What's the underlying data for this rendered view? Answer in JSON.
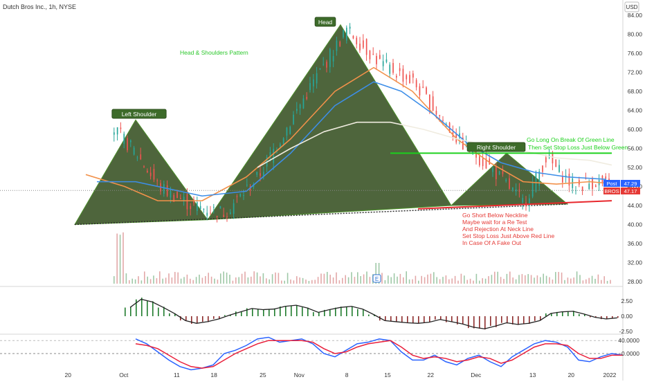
{
  "header": {
    "symbol_line": "Dutch Bros Inc., 1h, NYSE",
    "currency": "USD"
  },
  "chart_data": [
    {
      "type": "candlestick",
      "title": "Dutch Bros Inc., 1h, NYSE",
      "ylim": [
        28,
        86
      ],
      "y_ticks": [
        84.0,
        80.0,
        76.0,
        72.0,
        68.0,
        64.0,
        60.0,
        56.0,
        52.0,
        48.0,
        44.0,
        40.0,
        36.0,
        32.0,
        28.0
      ],
      "x_labels": [
        "20",
        "Oct",
        "11",
        "18",
        "25",
        "Nov",
        "8",
        "15",
        "22",
        "Dec",
        "13",
        "20",
        "2022"
      ],
      "price_path": {
        "t": [
          0,
          4,
          8,
          12,
          16,
          22,
          28,
          34,
          38,
          44,
          50,
          56,
          62,
          66,
          70,
          76,
          82,
          86,
          91,
          95,
          100
        ],
        "close": [
          42,
          54,
          60,
          55,
          48,
          44,
          42.5,
          50,
          58,
          70,
          81,
          74,
          70,
          64,
          58,
          52,
          44.5,
          54,
          48,
          49,
          47.2
        ]
      },
      "moving_averages": [
        {
          "color": "#f2914a",
          "t": [
            3,
            10,
            16,
            24,
            32,
            40,
            48,
            55,
            62,
            70,
            76,
            82,
            88,
            94,
            99
          ],
          "y": [
            50.5,
            48,
            45,
            45,
            50,
            58,
            68,
            73,
            68,
            58,
            53,
            49,
            48.5,
            49,
            48.5
          ]
        },
        {
          "color": "#3d8ee8",
          "t": [
            5,
            12,
            18,
            24,
            32,
            40,
            48,
            55,
            60,
            66,
            72,
            78,
            84,
            90,
            97
          ],
          "y": [
            49,
            49,
            47.5,
            46,
            47,
            55,
            65,
            70,
            68,
            63,
            57,
            53,
            51,
            50,
            49.5
          ]
        },
        {
          "color": "#f0ece0",
          "t": [
            34,
            40,
            46,
            52,
            58,
            64,
            70,
            76,
            82,
            88,
            94,
            98
          ],
          "y": [
            52,
            56,
            59.5,
            61.5,
            61.5,
            60,
            58,
            56.5,
            55.5,
            54,
            53.5,
            52.5
          ]
        }
      ],
      "patterns": [
        {
          "name": "Left Shoulder",
          "polygon": [
            [
              1,
              40
            ],
            [
              12,
              62
            ],
            [
              25,
              41
            ]
          ]
        },
        {
          "name": "Head",
          "polygon": [
            [
              25,
              41
            ],
            [
              49,
              82
            ],
            [
              69,
              44
            ]
          ]
        },
        {
          "name": "Right Shoulder",
          "polygon": [
            [
              69,
              44
            ],
            [
              79,
              55
            ],
            [
              90,
              44.3
            ]
          ]
        }
      ],
      "neckline": {
        "color": "#2f2f2f",
        "dash": true,
        "points": [
          [
            1,
            40
          ],
          [
            90,
            44.3
          ]
        ]
      },
      "red_line": {
        "color": "#e8272c",
        "points": [
          [
            63,
            43.3
          ],
          [
            98,
            45
          ]
        ]
      },
      "green_line": {
        "color": "#1cd11c",
        "points": [
          [
            58,
            55
          ],
          [
            98,
            55
          ]
        ]
      },
      "last_price_line": 47.17,
      "price_badges": [
        {
          "label": "Post",
          "value": "47.29",
          "color": "#2962ff"
        },
        {
          "label": "BROS",
          "value": "47.17",
          "color": "#e53935"
        }
      ],
      "annotations": {
        "pattern_title": "Head & Shoulders Pattern",
        "head_label": "Head",
        "left_shoulder_label": "Left Shoulder",
        "right_shoulder_label": "Right Shoulder",
        "green_note": [
          "Go Long On Break Of Green Line",
          "Then Set Stop Loss Just Below Green"
        ],
        "red_note": [
          "Go Short Below Neckline",
          "Maybe wait for a Re Test",
          "And Rejection At  Neck Line",
          "Set Stop Loss Just Above Red Line",
          "In Case Of A Fake Out"
        ],
        "earnings_marker": "E"
      }
    },
    {
      "type": "histogram",
      "name": "oscillator",
      "ylim": [
        -2.5,
        3.5
      ],
      "y_ticks": [
        2.5,
        0.0,
        -2.5
      ],
      "t": [
        10,
        12,
        14,
        16,
        18,
        20,
        22,
        24,
        26,
        28,
        30,
        32,
        34,
        36,
        38,
        40,
        42,
        44,
        46,
        48,
        50,
        52,
        54,
        56,
        58,
        60,
        62,
        64,
        66,
        68,
        70,
        72,
        74,
        76,
        78,
        80,
        82,
        84,
        86,
        88,
        90,
        92,
        94,
        96,
        98
      ],
      "values": [
        1.6,
        3.1,
        2.6,
        1.6,
        0.5,
        -0.8,
        -1.3,
        -1.0,
        -0.5,
        0.2,
        0.8,
        1.4,
        1.2,
        1.3,
        1.8,
        2.0,
        1.5,
        0.7,
        1.2,
        1.6,
        1.8,
        1.3,
        0.3,
        -0.8,
        -1.0,
        -1.2,
        -1.3,
        -1.1,
        -0.6,
        -1.0,
        -1.4,
        -2.0,
        -2.3,
        -1.8,
        -1.2,
        -1.5,
        -1.3,
        -0.8,
        0.5,
        0.8,
        0.9,
        0.4,
        -0.2,
        -0.5,
        -0.3
      ]
    },
    {
      "type": "line",
      "name": "stochastic",
      "ylim": [
        -80,
        80
      ],
      "y_ticks": [
        40.0,
        0.0
      ],
      "series": [
        {
          "color": "#2962ff",
          "t": [
            10,
            12,
            14,
            16,
            18,
            20,
            22,
            24,
            26,
            28,
            30,
            32,
            34,
            36,
            38,
            40,
            42,
            44,
            46,
            48,
            50,
            52,
            54,
            56,
            58,
            60,
            62,
            64,
            66,
            68,
            70,
            72,
            74,
            76,
            78,
            80,
            82,
            84,
            86,
            88,
            90,
            92,
            94,
            96,
            98
          ],
          "values": [
            45,
            30,
            5,
            -20,
            -40,
            -50,
            -45,
            -35,
            0,
            10,
            25,
            45,
            50,
            35,
            40,
            45,
            30,
            0,
            -10,
            10,
            30,
            35,
            45,
            40,
            5,
            -20,
            -20,
            -5,
            -25,
            -35,
            -15,
            -5,
            -25,
            -40,
            -10,
            10,
            30,
            40,
            35,
            20,
            -20,
            -25,
            -10,
            0,
            -5
          ]
        },
        {
          "color": "#e91e3a",
          "t": [
            10,
            12,
            14,
            16,
            18,
            20,
            22,
            24,
            26,
            28,
            30,
            32,
            34,
            36,
            38,
            40,
            42,
            44,
            46,
            48,
            50,
            52,
            54,
            56,
            58,
            60,
            62,
            64,
            66,
            68,
            70,
            72,
            74,
            76,
            78,
            80,
            82,
            84,
            86,
            88,
            90,
            92,
            94,
            96,
            98
          ],
          "values": [
            30,
            25,
            15,
            -5,
            -25,
            -40,
            -45,
            -40,
            -20,
            0,
            15,
            30,
            40,
            40,
            40,
            40,
            35,
            15,
            0,
            5,
            20,
            30,
            35,
            40,
            20,
            -5,
            -15,
            -10,
            -15,
            -25,
            -20,
            -10,
            -15,
            -30,
            -20,
            0,
            20,
            30,
            30,
            25,
            0,
            -15,
            -15,
            -5,
            -5
          ]
        }
      ]
    }
  ]
}
